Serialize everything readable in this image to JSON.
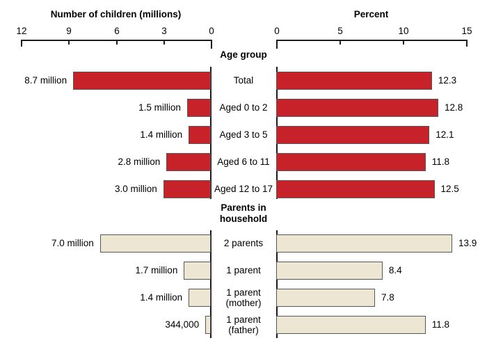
{
  "chart_data": {
    "type": "bar",
    "orientation": "horizontal-back-to-back",
    "left_panel": {
      "title": "Number of children (millions)",
      "axis_ticks": [
        12,
        9,
        6,
        3,
        0
      ],
      "axis_min": 0,
      "axis_max": 12,
      "direction": "right-to-left"
    },
    "right_panel": {
      "title": "Percent",
      "axis_ticks": [
        0,
        5,
        10,
        15
      ],
      "axis_min": 0,
      "axis_max": 15,
      "direction": "left-to-right"
    },
    "groups": [
      {
        "header": "Age group",
        "bar_color": "#c7212a",
        "rows": [
          {
            "label": "Total",
            "children_value_label": "8.7 million",
            "children_millions": 8.7,
            "percent": 12.3
          },
          {
            "label": "Aged 0 to 2",
            "children_value_label": "1.5 million",
            "children_millions": 1.5,
            "percent": 12.8
          },
          {
            "label": "Aged 3 to 5",
            "children_value_label": "1.4 million",
            "children_millions": 1.4,
            "percent": 12.1
          },
          {
            "label": "Aged 6 to 11",
            "children_value_label": "2.8 million",
            "children_millions": 2.8,
            "percent": 11.8
          },
          {
            "label": "Aged 12 to 17",
            "children_value_label": "3.0 million",
            "children_millions": 3.0,
            "percent": 12.5
          }
        ]
      },
      {
        "header": "Parents in\nhousehold",
        "bar_color": "#ede6d2",
        "rows": [
          {
            "label": "2 parents",
            "children_value_label": "7.0 million",
            "children_millions": 7.0,
            "percent": 13.9
          },
          {
            "label": "1 parent",
            "children_value_label": "1.7 million",
            "children_millions": 1.7,
            "percent": 8.4
          },
          {
            "label": "1 parent\n(mother)",
            "children_value_label": "1.4 million",
            "children_millions": 1.4,
            "percent": 7.8
          },
          {
            "label": "1 parent\n(father)",
            "children_value_label": "344,000",
            "children_millions": 0.344,
            "percent": 11.8
          }
        ]
      }
    ]
  },
  "colors": {
    "age_group_bar": "#c7212a",
    "parents_bar": "#ede6d2",
    "bar_border": "#565658",
    "axis_line": "#1c1c1c",
    "text": "#000000",
    "background": "#ffffff"
  }
}
